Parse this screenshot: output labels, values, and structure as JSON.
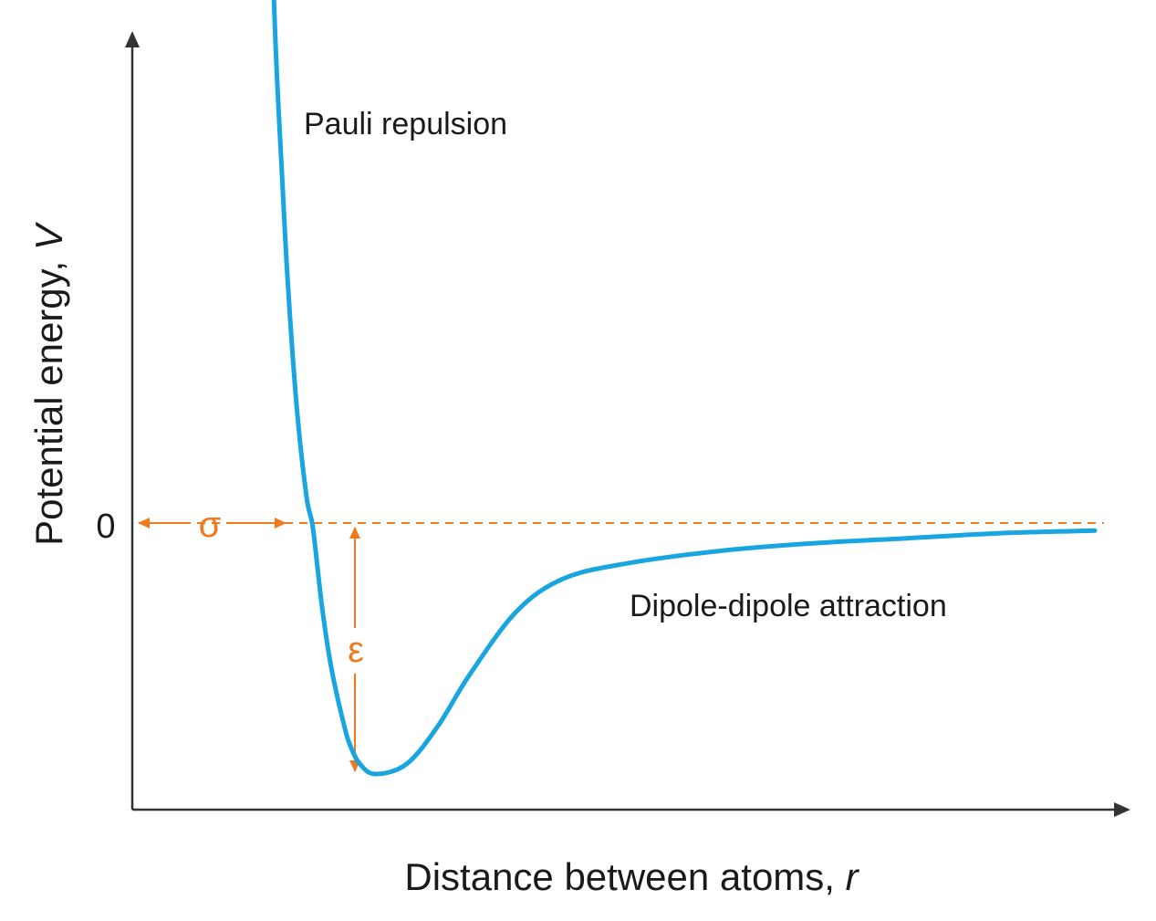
{
  "chart_data": {
    "type": "line",
    "title": "",
    "xlabel_main": "Distance between atoms, ",
    "xlabel_var": "r",
    "ylabel_main": "Potential energy, ",
    "ylabel_var": "V",
    "zero_tick": "0",
    "grid": false,
    "legend": "none",
    "series": [
      {
        "name": "",
        "color": "#18a5e0",
        "x": [
          0.86,
          0.88,
          0.9,
          0.92,
          0.95,
          0.98,
          1.0,
          1.03,
          1.06,
          1.1,
          1.12,
          1.15,
          1.2,
          1.3,
          1.4,
          1.5,
          1.65,
          1.8,
          2.0,
          2.3,
          2.6,
          2.9,
          3.2,
          3.5
        ],
        "y": [
          2.6,
          1.9,
          1.4,
          0.94,
          0.43,
          0.1,
          -0.02,
          -0.34,
          -0.58,
          -0.8,
          -0.88,
          -0.95,
          -0.99,
          -0.95,
          -0.8,
          -0.6,
          -0.35,
          -0.22,
          -0.16,
          -0.11,
          -0.08,
          -0.06,
          -0.04,
          -0.03
        ]
      }
    ],
    "zero_line_color": "#f07a1e",
    "axis_color": "#333333",
    "annotations": {
      "repulsion_label": "Pauli repulsion",
      "attraction_label": "Dipole-dipole attraction",
      "sigma_label": "σ",
      "epsilon_label": "ε",
      "sigma_x": 1.0,
      "well_x": 1.22,
      "well_depth": -0.99
    }
  }
}
